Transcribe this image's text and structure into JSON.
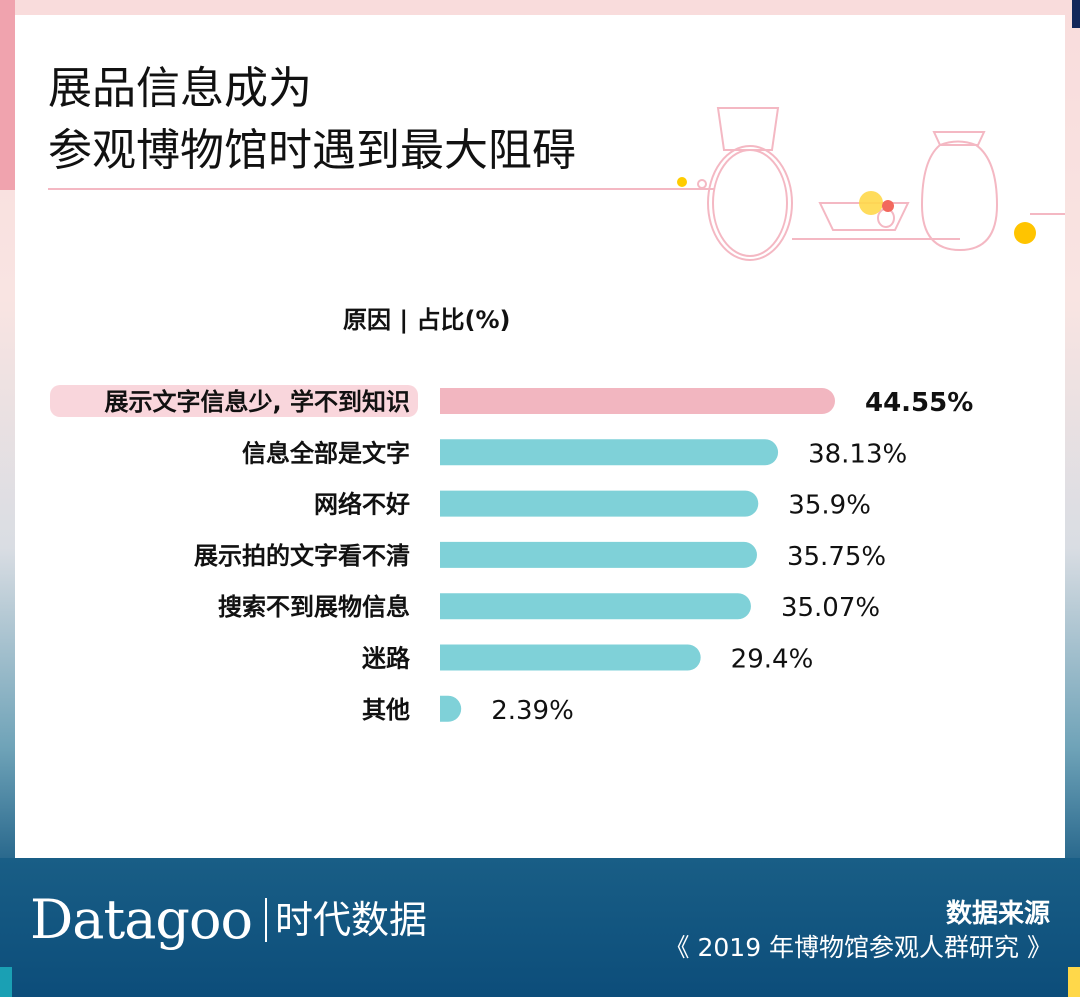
{
  "title": {
    "line1": "展品信息成为",
    "line2": "参观博物馆时遇到最大阻碍"
  },
  "header": "原因 | 占比(%)",
  "chart_data": {
    "type": "bar",
    "orientation": "horizontal",
    "title": "展品信息成为参观博物馆时遇到最大阻碍",
    "xlabel": "占比(%)",
    "ylabel": "原因",
    "categories": [
      "展示文字信息少, 学不到知识",
      "信息全部是文字",
      "网络不好",
      "展示拍的文字看不清",
      "搜索不到展物信息",
      "迷路",
      "其他"
    ],
    "values": [
      44.55,
      38.13,
      35.9,
      35.75,
      35.07,
      29.4,
      2.39
    ],
    "labels": [
      "44.55%",
      "38.13%",
      "35.9%",
      "35.75%",
      "35.07%",
      "29.4%",
      "2.39%"
    ],
    "highlight_index": 0,
    "colors": {
      "highlight": "#f2b6c0",
      "bar": "#7fd1d8"
    }
  },
  "footer": {
    "logo": "Datagoo",
    "logo_cn": "时代数据",
    "source_title": "数据来源",
    "source": "《 2019 年博物馆参观人群研究 》"
  }
}
